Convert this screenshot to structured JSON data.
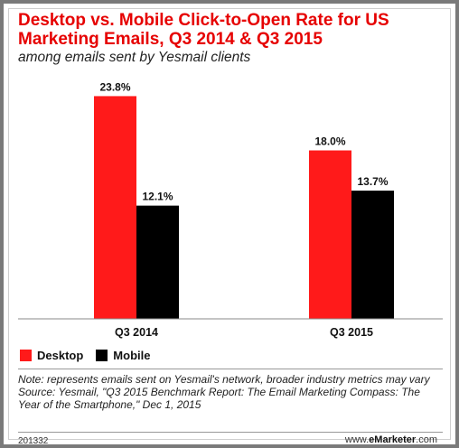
{
  "colors": {
    "title": "#e60000",
    "desktop": "#ff1a1a",
    "mobile": "#000000"
  },
  "chart_data": {
    "type": "bar",
    "title": "Desktop vs. Mobile Click-to-Open Rate for US Marketing Emails, Q3 2014 & Q3 2015",
    "subtitle": "among emails sent by Yesmail clients",
    "categories": [
      "Q3 2014",
      "Q3 2015"
    ],
    "series": [
      {
        "name": "Desktop",
        "values": [
          23.8,
          18.0
        ],
        "labels": [
          "23.8%",
          "18.0%"
        ]
      },
      {
        "name": "Mobile",
        "values": [
          12.1,
          13.7
        ],
        "labels": [
          "12.1%",
          "13.7%"
        ]
      }
    ],
    "ylim": [
      0,
      25
    ],
    "grid": false,
    "legend": "bottom-left"
  },
  "note": "Note: represents emails sent on Yesmail's network, broader industry metrics may vary",
  "source": "Source: Yesmail, \"Q3 2015 Benchmark Report: The Email Marketing Compass: The Year of the Smartphone,\" Dec 1, 2015",
  "chart_id": "201332",
  "brand": {
    "prefix": "www.",
    "name": "eMarketer",
    "suffix": ".com"
  }
}
